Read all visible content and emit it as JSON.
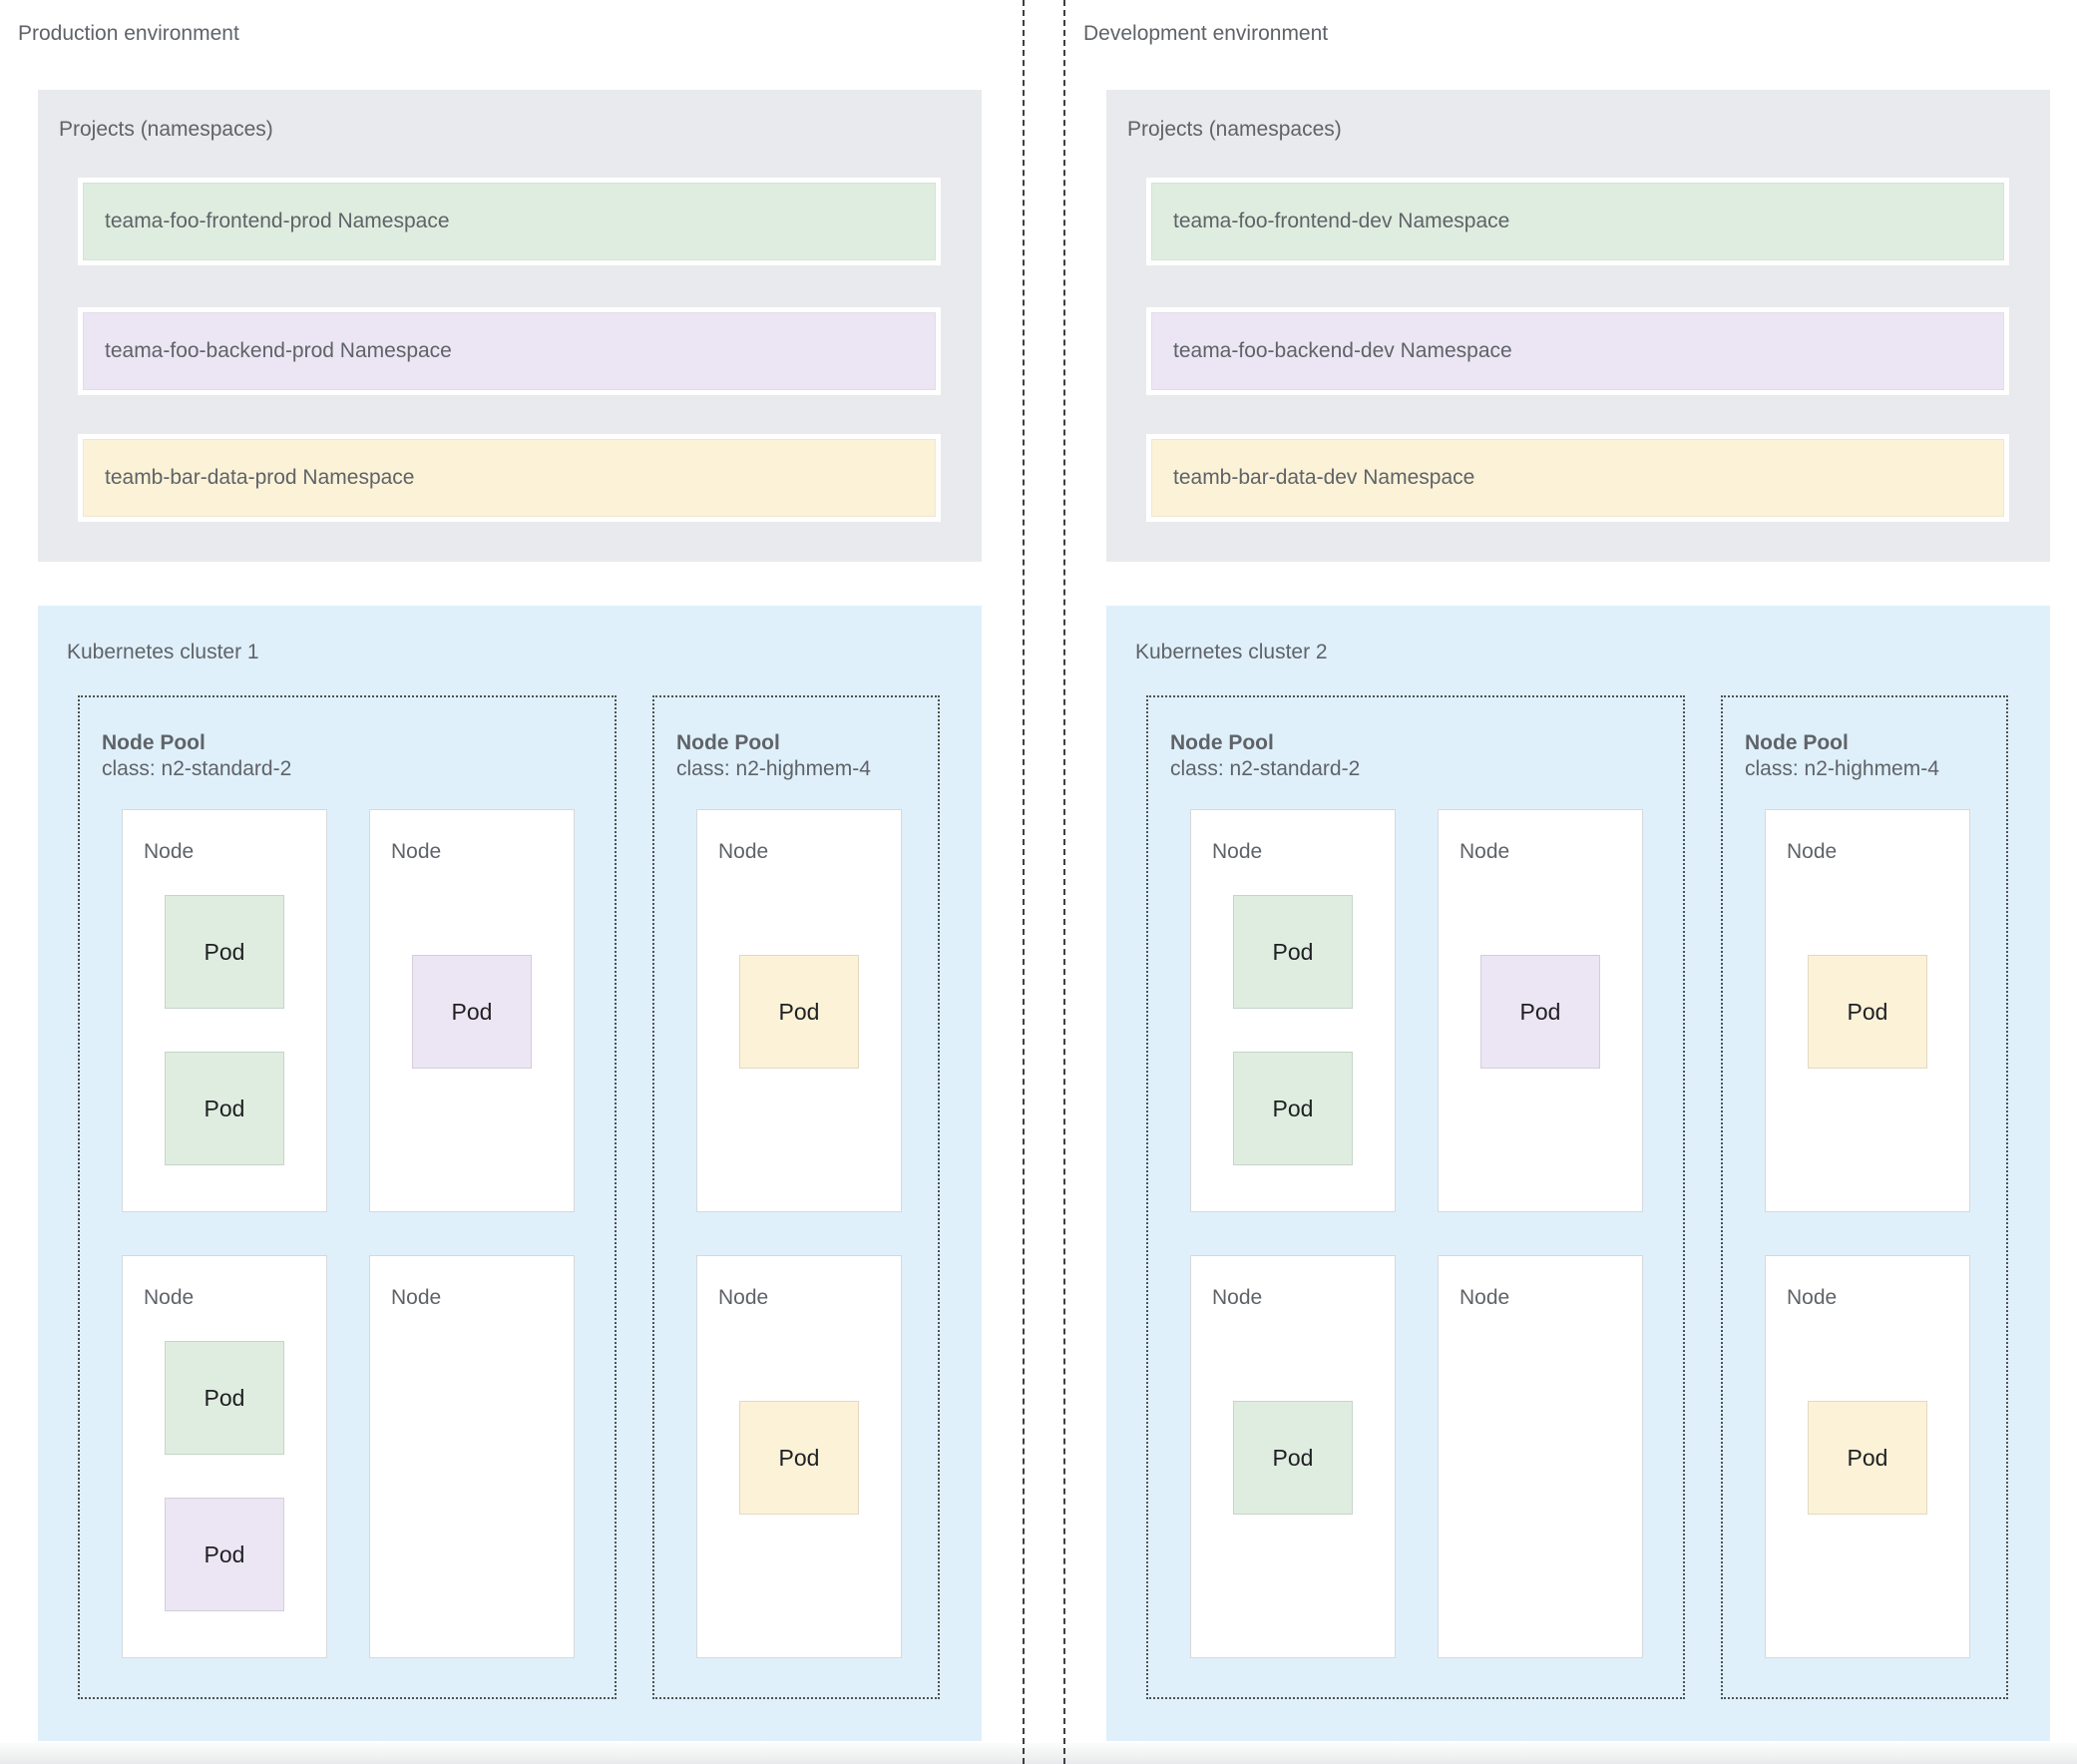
{
  "palette": {
    "frontend_green": "#dfede0",
    "backend_purple": "#ece6f4",
    "data_yellow": "#fbf2d7",
    "cluster_blue": "#dff0fb",
    "projects_gray": "#e8eaed",
    "label_gray": "#5f6368",
    "pod_text": "#202124",
    "dotted_border": "#4d5156"
  },
  "environments": [
    {
      "title": "Production environment",
      "projects": {
        "title": "Projects (namespaces)",
        "namespaces": [
          {
            "label": "teama-foo-frontend-prod Namespace",
            "color": "green"
          },
          {
            "label": "teama-foo-backend-prod Namespace",
            "color": "purple"
          },
          {
            "label": "teamb-bar-data-prod Namespace",
            "color": "yellow"
          }
        ]
      },
      "cluster": {
        "title": "Kubernetes cluster 1",
        "node_pools": [
          {
            "title": "Node Pool",
            "class_label": "class: n2-standard-2",
            "nodes": [
              {
                "label": "Node",
                "pods": [
                  {
                    "label": "Pod",
                    "color": "green"
                  },
                  {
                    "label": "Pod",
                    "color": "green"
                  }
                ]
              },
              {
                "label": "Node",
                "pods": [
                  {
                    "label": "Pod",
                    "color": "purple"
                  }
                ]
              },
              {
                "label": "Node",
                "pods": [
                  {
                    "label": "Pod",
                    "color": "green"
                  },
                  {
                    "label": "Pod",
                    "color": "purple"
                  }
                ]
              },
              {
                "label": "Node",
                "pods": []
              }
            ]
          },
          {
            "title": "Node Pool",
            "class_label": "class: n2-highmem-4",
            "nodes": [
              {
                "label": "Node",
                "pods": [
                  {
                    "label": "Pod",
                    "color": "yellow"
                  }
                ]
              },
              {
                "label": "Node",
                "pods": [
                  {
                    "label": "Pod",
                    "color": "yellow"
                  }
                ]
              }
            ]
          }
        ]
      }
    },
    {
      "title": "Development environment",
      "projects": {
        "title": "Projects (namespaces)",
        "namespaces": [
          {
            "label": "teama-foo-frontend-dev Namespace",
            "color": "green"
          },
          {
            "label": "teama-foo-backend-dev Namespace",
            "color": "purple"
          },
          {
            "label": "teamb-bar-data-dev Namespace",
            "color": "yellow"
          }
        ]
      },
      "cluster": {
        "title": "Kubernetes cluster 2",
        "node_pools": [
          {
            "title": "Node Pool",
            "class_label": "class: n2-standard-2",
            "nodes": [
              {
                "label": "Node",
                "pods": [
                  {
                    "label": "Pod",
                    "color": "green"
                  },
                  {
                    "label": "Pod",
                    "color": "green"
                  }
                ]
              },
              {
                "label": "Node",
                "pods": [
                  {
                    "label": "Pod",
                    "color": "purple"
                  }
                ]
              },
              {
                "label": "Node",
                "pods": [
                  {
                    "label": "Pod",
                    "color": "green"
                  }
                ]
              },
              {
                "label": "Node",
                "pods": []
              }
            ]
          },
          {
            "title": "Node Pool",
            "class_label": "class: n2-highmem-4",
            "nodes": [
              {
                "label": "Node",
                "pods": [
                  {
                    "label": "Pod",
                    "color": "yellow"
                  }
                ]
              },
              {
                "label": "Node",
                "pods": [
                  {
                    "label": "Pod",
                    "color": "yellow"
                  }
                ]
              }
            ]
          }
        ]
      }
    }
  ]
}
